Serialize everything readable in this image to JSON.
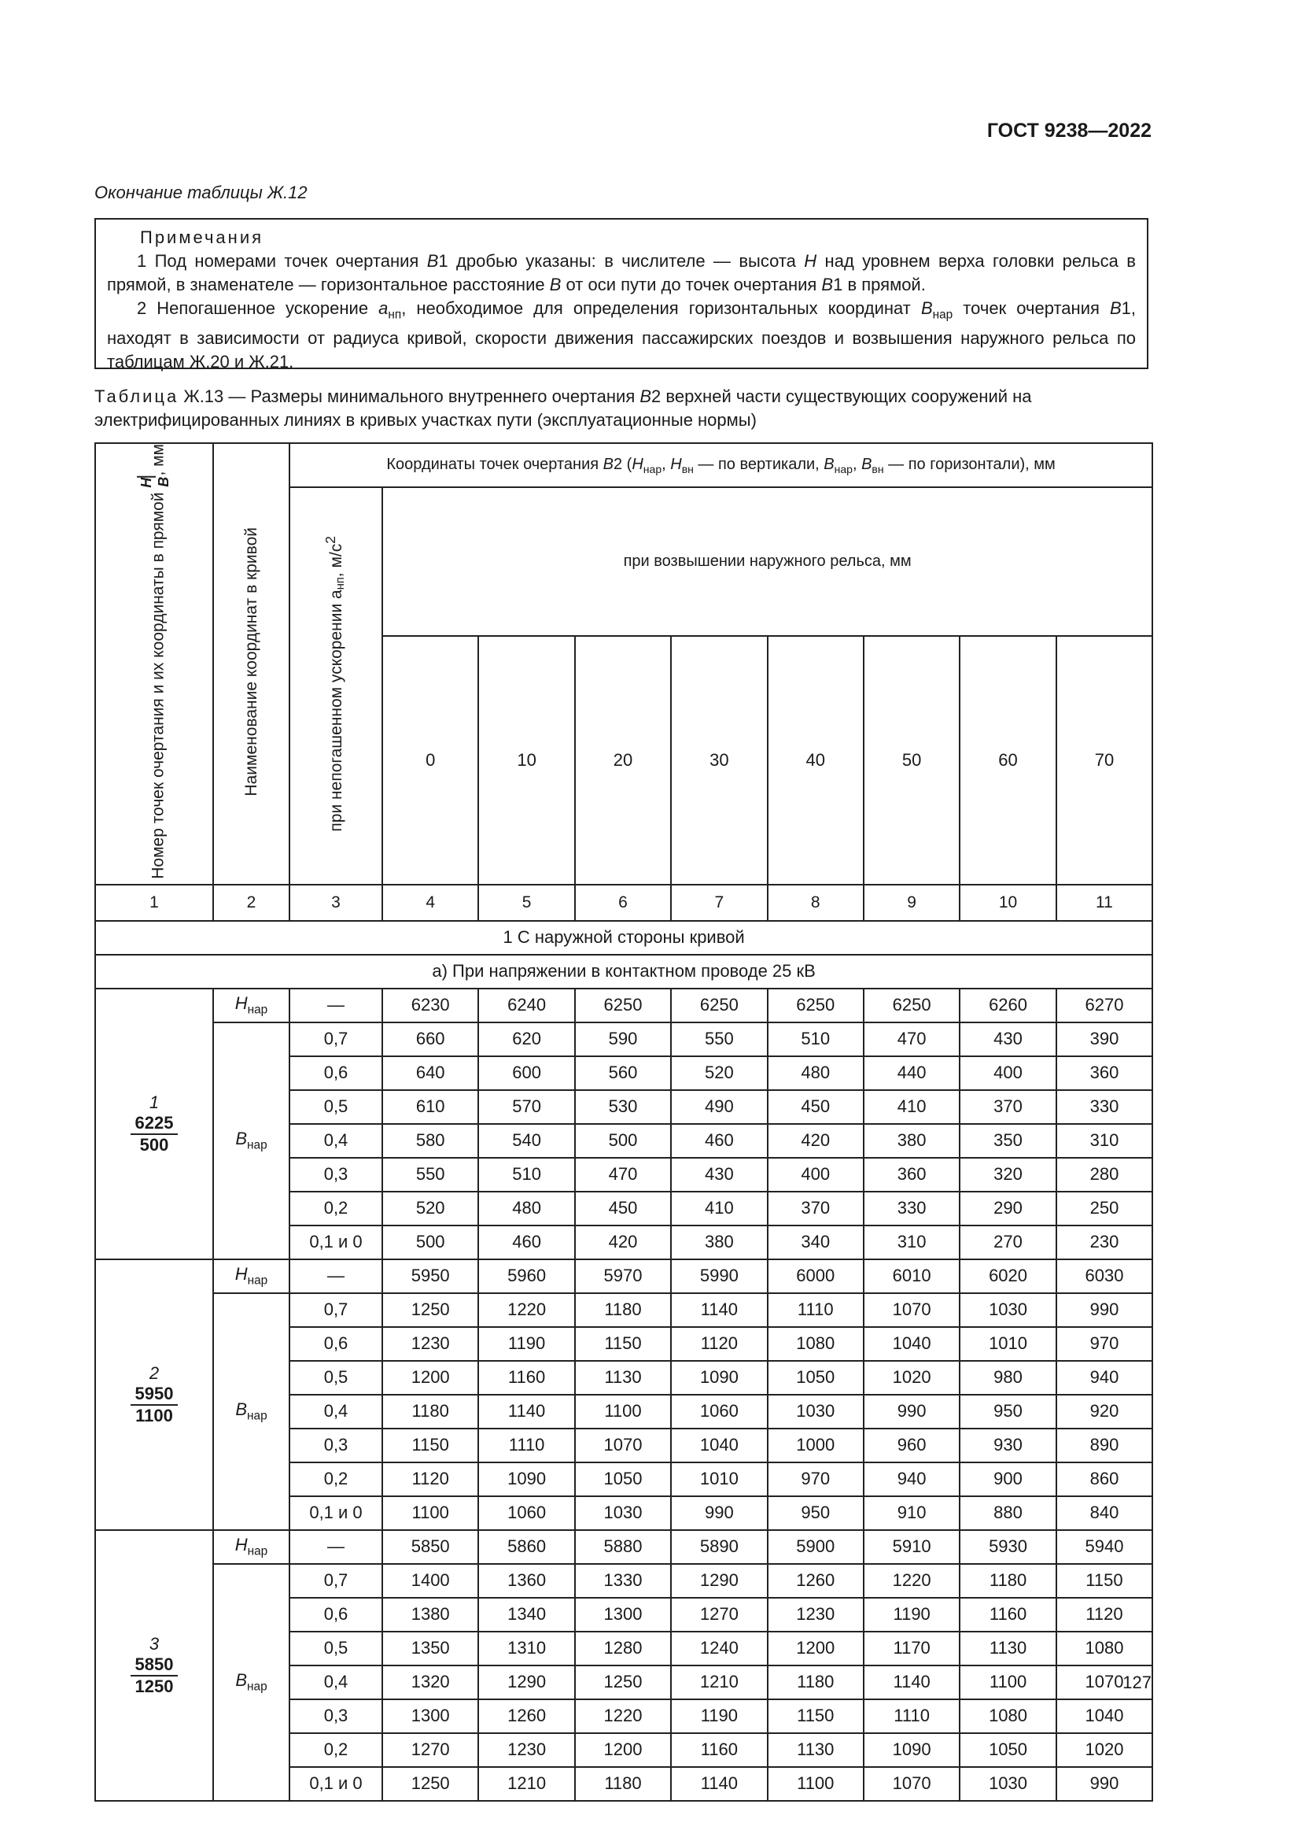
{
  "header": {
    "doc_id": "ГОСТ 9238—2022"
  },
  "continuation": "Окончание таблицы Ж.12",
  "notes": {
    "title": "Примечания",
    "n1": {
      "a": "1 Под номерами точек очертания ",
      "b": "B",
      "c": "1 дробью указаны: в числителе — высота ",
      "d": "H",
      "e": " над уровнем верха головки рельса в прямой, в знаменателе — горизонтальное расстояние ",
      "f": "B",
      "g": " от оси пути до точек очертания ",
      "h": "B",
      "i": "1 в прямой."
    },
    "n2": {
      "a": "2 Непогашенное ускорение ",
      "b": "a",
      "b_sub": "нп",
      "c": ", необходимое для определения горизонтальных координат ",
      "d": "B",
      "d_sub": "нар",
      "e": " точек очертания ",
      "f": "B",
      "g": "1, находят в зависимости от радиуса кривой, скорости движения пассажирских поездов и возвышения наружного рельса по таблицам Ж.20 и Ж.21."
    }
  },
  "caption": {
    "label": "Таблица",
    "text": " Ж.13 — Размеры минимального внутреннего очертания ",
    "b": "B",
    "text2": "2 верхней части существующих сооружений на электрифицированных линиях в кривых участках пути (эксплуатационные нормы)"
  },
  "table": {
    "col1": "Номер точек очертания и их координаты в прямой",
    "col1_h": "H",
    "col1_b": "B",
    "col1_unit": ", мм",
    "col2": "Наименование координат в кривой",
    "coords_header": {
      "a": "Координаты точек очертания ",
      "b": "B",
      "c": "2 (",
      "h": "H",
      "s1": "нар",
      "d": ", ",
      "s2": "вн",
      "e": " — по вертикали, ",
      "s3": "нар",
      "s4": "вн",
      "f": " — по горизонтали), мм"
    },
    "elev_header": "при возвышении наружного рельса, мм",
    "col3": "при непогашенном ускорении a",
    "col3_sub": "нп",
    "col3_unit": ", м/с",
    "col3_sup": "2",
    "elevations": [
      "0",
      "10",
      "20",
      "30",
      "40",
      "50",
      "60",
      "70"
    ],
    "col_numbers": [
      "1",
      "2",
      "3",
      "4",
      "5",
      "6",
      "7",
      "8",
      "9",
      "10",
      "11"
    ],
    "section": "1 С наружной стороны кривой",
    "subsection": "а) При напряжении в контактном проводе 25 кВ",
    "h_label": "H",
    "b_label": "B",
    "sub_label": "нар",
    "groups": [
      {
        "point": "1",
        "h": "6225",
        "b": "500",
        "h_row": {
          "accel": "—",
          "values": [
            "6230",
            "6240",
            "6250",
            "6250",
            "6250",
            "6250",
            "6260",
            "6270"
          ]
        },
        "b_rows": [
          {
            "accel": "0,7",
            "values": [
              "660",
              "620",
              "590",
              "550",
              "510",
              "470",
              "430",
              "390"
            ]
          },
          {
            "accel": "0,6",
            "values": [
              "640",
              "600",
              "560",
              "520",
              "480",
              "440",
              "400",
              "360"
            ]
          },
          {
            "accel": "0,5",
            "values": [
              "610",
              "570",
              "530",
              "490",
              "450",
              "410",
              "370",
              "330"
            ]
          },
          {
            "accel": "0,4",
            "values": [
              "580",
              "540",
              "500",
              "460",
              "420",
              "380",
              "350",
              "310"
            ]
          },
          {
            "accel": "0,3",
            "values": [
              "550",
              "510",
              "470",
              "430",
              "400",
              "360",
              "320",
              "280"
            ]
          },
          {
            "accel": "0,2",
            "values": [
              "520",
              "480",
              "450",
              "410",
              "370",
              "330",
              "290",
              "250"
            ]
          },
          {
            "accel": "0,1 и 0",
            "values": [
              "500",
              "460",
              "420",
              "380",
              "340",
              "310",
              "270",
              "230"
            ]
          }
        ]
      },
      {
        "point": "2",
        "h": "5950",
        "b": "1100",
        "h_row": {
          "accel": "—",
          "values": [
            "5950",
            "5960",
            "5970",
            "5990",
            "6000",
            "6010",
            "6020",
            "6030"
          ]
        },
        "b_rows": [
          {
            "accel": "0,7",
            "values": [
              "1250",
              "1220",
              "1180",
              "1140",
              "1110",
              "1070",
              "1030",
              "990"
            ]
          },
          {
            "accel": "0,6",
            "values": [
              "1230",
              "1190",
              "1150",
              "1120",
              "1080",
              "1040",
              "1010",
              "970"
            ]
          },
          {
            "accel": "0,5",
            "values": [
              "1200",
              "1160",
              "1130",
              "1090",
              "1050",
              "1020",
              "980",
              "940"
            ]
          },
          {
            "accel": "0,4",
            "values": [
              "1180",
              "1140",
              "1100",
              "1060",
              "1030",
              "990",
              "950",
              "920"
            ]
          },
          {
            "accel": "0,3",
            "values": [
              "1150",
              "1110",
              "1070",
              "1040",
              "1000",
              "960",
              "930",
              "890"
            ]
          },
          {
            "accel": "0,2",
            "values": [
              "1120",
              "1090",
              "1050",
              "1010",
              "970",
              "940",
              "900",
              "860"
            ]
          },
          {
            "accel": "0,1 и 0",
            "values": [
              "1100",
              "1060",
              "1030",
              "990",
              "950",
              "910",
              "880",
              "840"
            ]
          }
        ]
      },
      {
        "point": "3",
        "h": "5850",
        "b": "1250",
        "h_row": {
          "accel": "—",
          "values": [
            "5850",
            "5860",
            "5880",
            "5890",
            "5900",
            "5910",
            "5930",
            "5940"
          ]
        },
        "b_rows": [
          {
            "accel": "0,7",
            "values": [
              "1400",
              "1360",
              "1330",
              "1290",
              "1260",
              "1220",
              "1180",
              "1150"
            ]
          },
          {
            "accel": "0,6",
            "values": [
              "1380",
              "1340",
              "1300",
              "1270",
              "1230",
              "1190",
              "1160",
              "1120"
            ]
          },
          {
            "accel": "0,5",
            "values": [
              "1350",
              "1310",
              "1280",
              "1240",
              "1200",
              "1170",
              "1130",
              "1080"
            ]
          },
          {
            "accel": "0,4",
            "values": [
              "1320",
              "1290",
              "1250",
              "1210",
              "1180",
              "1140",
              "1100",
              "1070"
            ]
          },
          {
            "accel": "0,3",
            "values": [
              "1300",
              "1260",
              "1220",
              "1190",
              "1150",
              "1110",
              "1080",
              "1040"
            ]
          },
          {
            "accel": "0,2",
            "values": [
              "1270",
              "1230",
              "1200",
              "1160",
              "1130",
              "1090",
              "1050",
              "1020"
            ]
          },
          {
            "accel": "0,1 и 0",
            "values": [
              "1250",
              "1210",
              "1180",
              "1140",
              "1100",
              "1070",
              "1030",
              "990"
            ]
          }
        ]
      }
    ]
  },
  "page_number": "127"
}
